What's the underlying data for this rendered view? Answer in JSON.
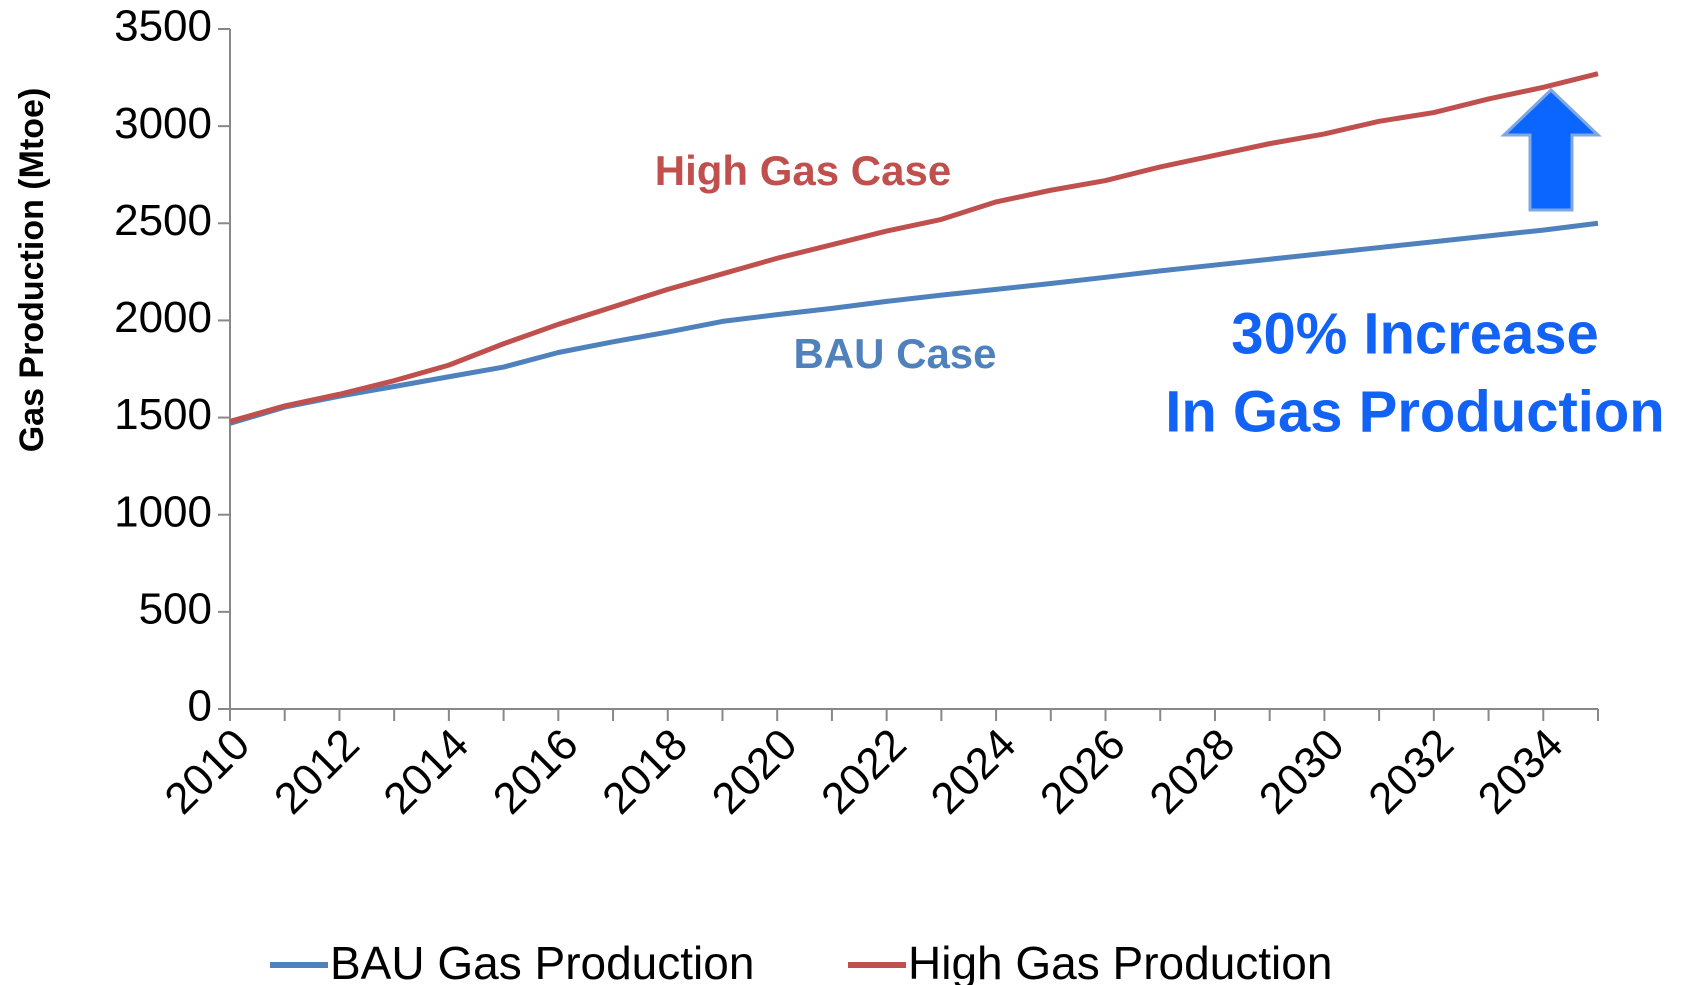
{
  "chart_data": {
    "type": "line",
    "y_label": "Gas Production (Mtoe)",
    "categories": [
      "2010",
      null,
      "2012",
      null,
      "2014",
      null,
      "2016",
      null,
      "2018",
      null,
      "2020",
      null,
      "2022",
      null,
      "2024",
      null,
      "2026",
      null,
      "2028",
      null,
      "2030",
      null,
      "2032",
      null,
      "2034",
      null
    ],
    "series": [
      {
        "name": "BAU Gas Production",
        "color": "#4f81bd",
        "values": [
          1470,
          1554,
          1610,
          1660,
          1710,
          1760,
          1835,
          1890,
          1940,
          1995,
          2030,
          2062,
          2098,
          2130,
          2160,
          2190,
          2222,
          2255,
          2285,
          2315,
          2345,
          2375,
          2405,
          2435,
          2465,
          2500
        ]
      },
      {
        "name": "High Gas Production",
        "color": "#c0504d",
        "values": [
          1480,
          1560,
          1620,
          1690,
          1770,
          1880,
          1980,
          2070,
          2160,
          2240,
          2320,
          2390,
          2460,
          2520,
          2610,
          2670,
          2720,
          2790,
          2850,
          2910,
          2960,
          3025,
          3070,
          3140,
          3200,
          3270
        ]
      }
    ],
    "ylim": [
      0,
      3500
    ],
    "yticks": [
      0,
      500,
      1000,
      1500,
      2000,
      2500,
      3000,
      3500
    ],
    "annotations": [
      "High Gas Case",
      "BAU Case",
      "30% Increase",
      "In Gas Production"
    ],
    "legend": "bottom"
  }
}
